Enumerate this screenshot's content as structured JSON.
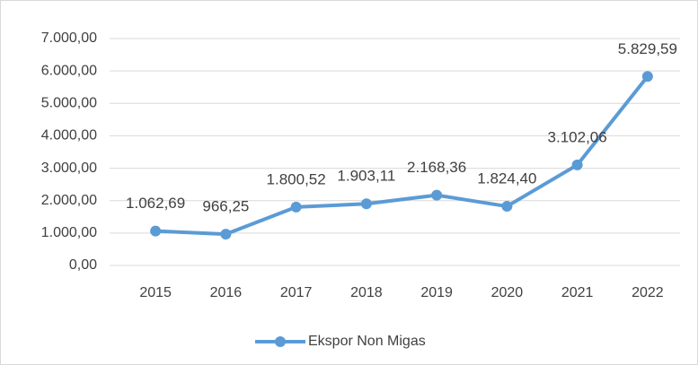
{
  "chart_data": {
    "type": "line",
    "categories": [
      "2015",
      "2016",
      "2017",
      "2018",
      "2019",
      "2020",
      "2021",
      "2022"
    ],
    "series": [
      {
        "name": "Ekspor Non Migas",
        "color": "#5b9bd5",
        "values": [
          1062.69,
          966.25,
          1800.52,
          1903.11,
          2168.36,
          1824.4,
          3102.06,
          5829.59
        ],
        "value_labels": [
          "1.062,69",
          "966,25",
          "1.800,52",
          "1.903,11",
          "2.168,36",
          "1.824,40",
          "3.102,06",
          "5.829,59"
        ]
      }
    ],
    "ylim": [
      0,
      7000
    ],
    "yticks": [
      {
        "value": 0,
        "label": "0,00"
      },
      {
        "value": 1000,
        "label": "1.000,00"
      },
      {
        "value": 2000,
        "label": "2.000,00"
      },
      {
        "value": 3000,
        "label": "3.000,00"
      },
      {
        "value": 4000,
        "label": "4.000,00"
      },
      {
        "value": 5000,
        "label": "5.000,00"
      },
      {
        "value": 6000,
        "label": "6.000,00"
      },
      {
        "value": 7000,
        "label": "7.000,00"
      }
    ],
    "grid": true,
    "legend": "bottom"
  }
}
